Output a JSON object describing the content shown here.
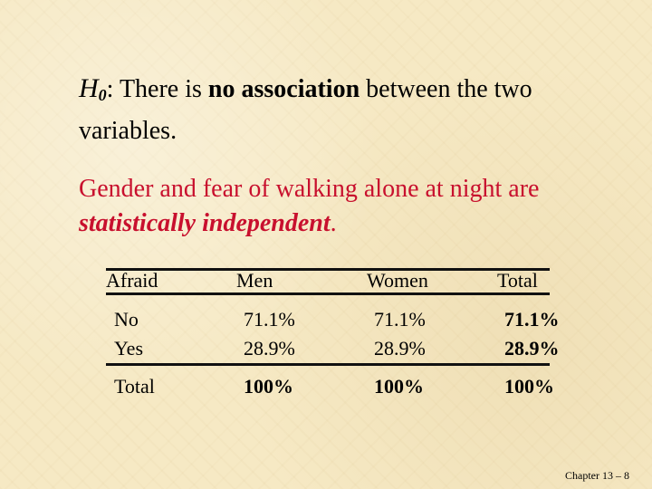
{
  "hypothesis": {
    "label": "H",
    "subscript": "0",
    "colon": ":",
    "text_before": " There is ",
    "emphasis": "no association",
    "text_after": " between the two variables."
  },
  "claim": {
    "text_before": "Gender and fear of walking alone at night are ",
    "emphasis": "statistically independent",
    "text_after": "."
  },
  "table": {
    "headers": [
      "Afraid",
      "Men",
      "Women",
      "Total"
    ],
    "rows": [
      [
        "No",
        "71.1%",
        "71.1%",
        "71.1%"
      ],
      [
        "Yes",
        "28.9%",
        "28.9%",
        "28.9%"
      ]
    ],
    "total_row": [
      "Total",
      "100%",
      "100%",
      "100%"
    ]
  },
  "footer": "Chapter 13 – 8",
  "colors": {
    "background": "#f6e9c4",
    "claim_text": "#c8102e",
    "text": "#000000"
  }
}
